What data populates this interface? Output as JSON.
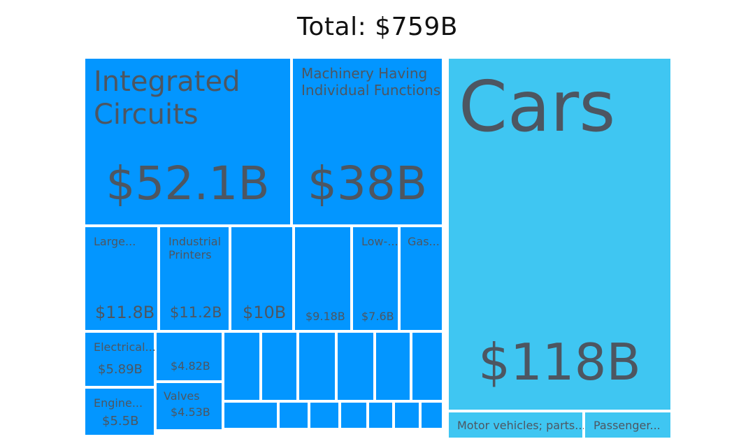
{
  "chart_data": {
    "type": "treemap",
    "title": "Total: $759B",
    "colors": {
      "electronics": "#0396ff",
      "transport": "#3fc6f2",
      "text": "#4d5661",
      "border": "#ffffff"
    },
    "groups": [
      {
        "name": "",
        "color": "#0396ff",
        "items": [
          {
            "name": "Integrated Circuits",
            "value_label": "$52.1B",
            "value": 52.1
          },
          {
            "name": "Machinery Having Individual Functions",
            "value_label": "$38B",
            "value": 38
          },
          {
            "name": "Large...",
            "value_label": "$11.8B",
            "value": 11.8
          },
          {
            "name": "Industrial Printers",
            "value_label": "$11.2B",
            "value": 11.2
          },
          {
            "name": "",
            "value_label": "$10B",
            "value": 10
          },
          {
            "name": "",
            "value_label": "$9.18B",
            "value": 9.18
          },
          {
            "name": "Low-...",
            "value_label": "$7.6B",
            "value": 7.6
          },
          {
            "name": "Gas...",
            "value_label": "",
            "value": null
          },
          {
            "name": "Electrical...",
            "value_label": "$5.89B",
            "value": 5.89
          },
          {
            "name": "",
            "value_label": "$4.82B",
            "value": 4.82
          },
          {
            "name": "Engine...",
            "value_label": "$5.5B",
            "value": 5.5
          },
          {
            "name": "Valves",
            "value_label": "$4.53B",
            "value": 4.53
          }
        ]
      },
      {
        "name": "",
        "color": "#3fc6f2",
        "items": [
          {
            "name": "Cars",
            "value_label": "$118B",
            "value": 118
          },
          {
            "name": "Motor vehicles; parts...",
            "value_label": "",
            "value": null
          },
          {
            "name": "Passenger...",
            "value_label": "",
            "value": null
          }
        ]
      }
    ]
  }
}
